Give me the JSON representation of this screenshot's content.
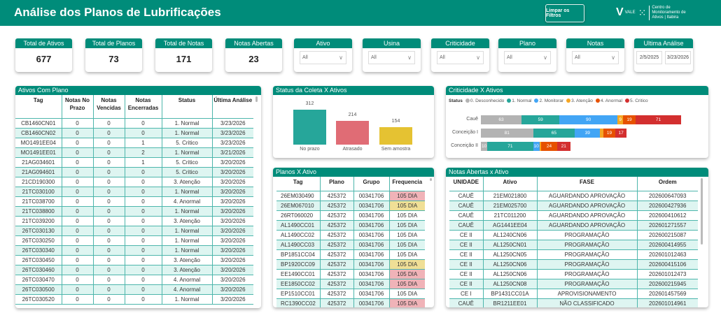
{
  "header": {
    "title": "Análise dos Planos de Lubrificações",
    "clear_filters": "Limpar os Filtros",
    "logo_brand": "VALE",
    "logo_text": "Centro de Monitoramento de Ativos | Itabira"
  },
  "kpis": [
    {
      "label": "Total de Ativos",
      "value": "677"
    },
    {
      "label": "Total de Planos",
      "value": "73"
    },
    {
      "label": "Total de Notas",
      "value": "171"
    },
    {
      "label": "Notas Abertas",
      "value": "23"
    }
  ],
  "filters": [
    {
      "label": "Ativo",
      "value": "All"
    },
    {
      "label": "Usina",
      "value": "All"
    },
    {
      "label": "Criticidade",
      "value": "All"
    },
    {
      "label": "Plano",
      "value": "All"
    },
    {
      "label": "Notas",
      "value": "All"
    }
  ],
  "date_filter": {
    "label": "Ultima Análise",
    "start": "2/5/2025",
    "end": "3/23/2026"
  },
  "ativos_table": {
    "title": "Ativos Com Plano",
    "columns": [
      "Tag",
      "Notas No Prazo",
      "Notas Vencidas",
      "Notas Encerradas",
      "Status",
      "Última Análise"
    ],
    "rows": [
      [
        "CB1460CN01",
        "0",
        "0",
        "0",
        "1. Normal",
        "3/23/2026"
      ],
      [
        "CB1460CN02",
        "0",
        "0",
        "0",
        "1. Normal",
        "3/23/2026"
      ],
      [
        "MO1491EE04",
        "0",
        "0",
        "1",
        "5. Critico",
        "3/23/2026"
      ],
      [
        "MO1491EE01",
        "0",
        "0",
        "2",
        "1. Normal",
        "3/21/2026"
      ],
      [
        "21AG034601",
        "0",
        "0",
        "1",
        "5. Critico",
        "3/20/2026"
      ],
      [
        "21AG094601",
        "0",
        "0",
        "0",
        "5. Critico",
        "3/20/2026"
      ],
      [
        "21CD190300",
        "0",
        "0",
        "0",
        "3. Atenção",
        "3/20/2026"
      ],
      [
        "21TC030100",
        "0",
        "0",
        "0",
        "1. Normal",
        "3/20/2026"
      ],
      [
        "21TC038700",
        "0",
        "0",
        "0",
        "4. Anormal",
        "3/20/2026"
      ],
      [
        "21TC038800",
        "0",
        "0",
        "0",
        "1. Normal",
        "3/20/2026"
      ],
      [
        "21TC039200",
        "0",
        "0",
        "0",
        "3. Atenção",
        "3/20/2026"
      ],
      [
        "26TC030130",
        "0",
        "0",
        "0",
        "1. Normal",
        "3/20/2026"
      ],
      [
        "26TC030250",
        "0",
        "0",
        "0",
        "1. Normal",
        "3/20/2026"
      ],
      [
        "26TC030340",
        "0",
        "0",
        "0",
        "1. Normal",
        "3/20/2026"
      ],
      [
        "26TC030450",
        "0",
        "0",
        "0",
        "3. Atenção",
        "3/20/2026"
      ],
      [
        "26TC030460",
        "0",
        "0",
        "0",
        "3. Atenção",
        "3/20/2026"
      ],
      [
        "26TC030470",
        "0",
        "0",
        "0",
        "4. Anormal",
        "3/20/2026"
      ],
      [
        "26TC030500",
        "0",
        "0",
        "0",
        "4. Anormal",
        "3/20/2026"
      ],
      [
        "26TC030520",
        "0",
        "0",
        "0",
        "1. Normal",
        "3/20/2026"
      ]
    ]
  },
  "chart_data": [
    {
      "type": "bar",
      "title": "Status da Coleta X Ativos",
      "categories": [
        "No prazo",
        "Atrasado",
        "Sem amostra"
      ],
      "values": [
        312,
        214,
        154
      ],
      "colors": [
        "#26a69a",
        "#e06c75",
        "#e5c232"
      ]
    },
    {
      "type": "bar",
      "orientation": "horizontal",
      "stacked": true,
      "title": "Criticidade X Ativos",
      "legend_title": "Status",
      "legend": "top-left",
      "categories": [
        "Cauê",
        "Conceição I",
        "Conceição II"
      ],
      "series": [
        {
          "name": "0. Desconhecido",
          "color": "#b3b3b3",
          "values": [
            63,
            81,
            10
          ]
        },
        {
          "name": "1. Normal",
          "color": "#26a69a",
          "values": [
            59,
            65,
            71
          ]
        },
        {
          "name": "2. Monitorar",
          "color": "#42a5f5",
          "values": [
            90,
            39,
            10
          ]
        },
        {
          "name": "3. Atenção",
          "color": "#f5a623",
          "values": [
            9,
            5,
            3
          ]
        },
        {
          "name": "4. Anormal",
          "color": "#e65100",
          "values": [
            19,
            19,
            24
          ]
        },
        {
          "name": "5. Critico",
          "color": "#d32f2f",
          "values": [
            71,
            17,
            21
          ]
        }
      ]
    }
  ],
  "planos_table": {
    "title": "Planos X Ativo",
    "columns": [
      "Tag",
      "Plano",
      "Grupo",
      "Frequencia"
    ],
    "rows": [
      [
        "26EM030490",
        "425372",
        "00341706",
        "105 DIA",
        "pink"
      ],
      [
        "26EM067010",
        "425372",
        "00341706",
        "105 DIA",
        "yellow"
      ],
      [
        "26RT060020",
        "425372",
        "00341706",
        "105 DIA",
        ""
      ],
      [
        "AL1490CC01",
        "425372",
        "00341706",
        "105 DIA",
        ""
      ],
      [
        "AL1490CC02",
        "425372",
        "00341706",
        "105 DIA",
        ""
      ],
      [
        "AL1490CC03",
        "425372",
        "00341706",
        "105 DIA",
        ""
      ],
      [
        "BP1851CC04",
        "425372",
        "00341706",
        "105 DIA",
        ""
      ],
      [
        "BP1920CC09",
        "425372",
        "00341706",
        "105 DIA",
        "yellow"
      ],
      [
        "EE1490CC01",
        "425372",
        "00341706",
        "105 DIA",
        "pink"
      ],
      [
        "EE1850CC02",
        "425372",
        "00341706",
        "105 DIA",
        "pink"
      ],
      [
        "EP1510CC01",
        "425372",
        "00341706",
        "105 DIA",
        ""
      ],
      [
        "RC1390CC02",
        "425372",
        "00341706",
        "105 DIA",
        "pink"
      ]
    ]
  },
  "notas_table": {
    "title": "Notas Abertas x Ativo",
    "columns": [
      "UNIDADE",
      "Ativo",
      "FASE",
      "Ordem"
    ],
    "rows": [
      [
        "CAUÊ",
        "21EM021800",
        "AGUARDANDO APROVAÇÃO",
        "202600647093"
      ],
      [
        "CAUÊ",
        "21EM025700",
        "AGUARDANDO APROVAÇÃO",
        "202600427936"
      ],
      [
        "CAUÊ",
        "21TC011200",
        "AGUARDANDO APROVAÇÃO",
        "202600410612"
      ],
      [
        "CAUÊ",
        "AG1441EE04",
        "AGUARDANDO APROVAÇÃO",
        "202601271557"
      ],
      [
        "CE II",
        "AL1240CN06",
        "PROGRAMAÇÃO",
        "202600215087"
      ],
      [
        "CE II",
        "AL1250CN01",
        "PROGRAMAÇÃO",
        "202600414955"
      ],
      [
        "CE II",
        "AL1250CN05",
        "PROGRAMAÇÃO",
        "202601012463"
      ],
      [
        "CE II",
        "AL1250CN06",
        "PROGRAMAÇÃO",
        "202600415106"
      ],
      [
        "CE II",
        "AL1250CN06",
        "PROGRAMAÇÃO",
        "202601012473"
      ],
      [
        "CE II",
        "AL1250CN08",
        "PROGRAMAÇÃO",
        "202600215945"
      ],
      [
        "CE I",
        "BP1431CC01A",
        "APROVISIONAMENTO",
        "202601457569"
      ],
      [
        "CAUÊ",
        "BR1211EE01",
        "NÃO CLASSIFICADO",
        "202601014961"
      ]
    ]
  }
}
